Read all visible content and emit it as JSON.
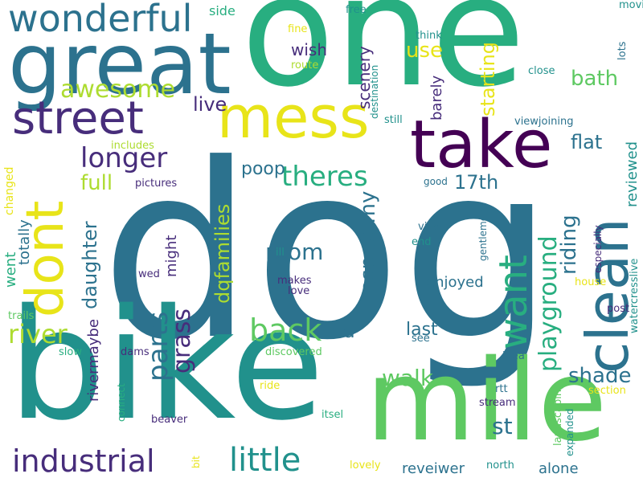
{
  "palette": {
    "dark_purple": "#440154",
    "indigo": "#472d7b",
    "blue_teal": "#2c728e",
    "teal": "#21918c",
    "green": "#28ae80",
    "light_green": "#5ec962",
    "lime": "#addc30",
    "yellow": "#e8e419"
  },
  "words": [
    {
      "text": "one",
      "color": "#28ae80",
      "orientation": "horizontal"
    },
    {
      "text": "dog",
      "color": "#2c728e",
      "orientation": "horizontal"
    },
    {
      "text": "bike",
      "color": "#21918c",
      "orientation": "horizontal"
    },
    {
      "text": "mile",
      "color": "#5ec962",
      "orientation": "horizontal"
    },
    {
      "text": "great",
      "color": "#2c728e",
      "orientation": "horizontal"
    },
    {
      "text": "take",
      "color": "#440154",
      "orientation": "horizontal"
    },
    {
      "text": "mess",
      "color": "#e8e419",
      "orientation": "horizontal"
    },
    {
      "text": "clean",
      "color": "#2c728e",
      "orientation": "vertical"
    },
    {
      "text": "dont",
      "color": "#e8e419",
      "orientation": "vertical"
    },
    {
      "text": "street",
      "color": "#472d7b",
      "orientation": "horizontal"
    },
    {
      "text": "wonderful",
      "color": "#2c728e",
      "orientation": "horizontal"
    },
    {
      "text": "want",
      "color": "#28ae80",
      "orientation": "vertical"
    },
    {
      "text": "industrial",
      "color": "#472d7b",
      "orientation": "horizontal"
    },
    {
      "text": "little",
      "color": "#21918c",
      "orientation": "horizontal"
    },
    {
      "text": "river",
      "color": "#addc30",
      "orientation": "horizontal"
    },
    {
      "text": "back",
      "color": "#5ec962",
      "orientation": "horizontal"
    },
    {
      "text": "longer",
      "color": "#472d7b",
      "orientation": "horizontal"
    },
    {
      "text": "theres",
      "color": "#28ae80",
      "orientation": "horizontal"
    },
    {
      "text": "awesome",
      "color": "#addc30",
      "orientation": "horizontal"
    },
    {
      "text": "playground",
      "color": "#28ae80",
      "orientation": "vertical"
    },
    {
      "text": "parts",
      "color": "#2c728e",
      "orientation": "vertical"
    },
    {
      "text": "grass",
      "color": "#472d7b",
      "orientation": "vertical"
    },
    {
      "text": "room",
      "color": "#2c728e",
      "orientation": "horizontal"
    },
    {
      "text": "walk",
      "color": "#5ec962",
      "orientation": "horizontal"
    },
    {
      "text": "shade",
      "color": "#2c728e",
      "orientation": "horizontal"
    },
    {
      "text": "dqfamilies",
      "color": "#addc30",
      "orientation": "vertical"
    },
    {
      "text": "daughter",
      "color": "#2c728e",
      "orientation": "vertical"
    },
    {
      "text": "respectmy",
      "color": "#2c728e",
      "orientation": "vertical"
    },
    {
      "text": "riding",
      "color": "#2c728e",
      "orientation": "vertical"
    },
    {
      "text": "live",
      "color": "#472d7b",
      "orientation": "horizontal"
    },
    {
      "text": "poop",
      "color": "#2c728e",
      "orientation": "horizontal"
    },
    {
      "text": "full",
      "color": "#addc30",
      "orientation": "horizontal"
    },
    {
      "text": "flat",
      "color": "#2c728e",
      "orientation": "horizontal"
    },
    {
      "text": "17th",
      "color": "#2c728e",
      "orientation": "horizontal"
    },
    {
      "text": "rid",
      "color": "#2c728e",
      "orientation": "horizontal"
    },
    {
      "text": "last",
      "color": "#2c728e",
      "orientation": "horizontal"
    },
    {
      "text": "st",
      "color": "#2c728e",
      "orientation": "horizontal"
    },
    {
      "text": "bath",
      "color": "#5ec962",
      "orientation": "horizontal"
    },
    {
      "text": "use",
      "color": "#e8e419",
      "orientation": "horizontal"
    },
    {
      "text": "starting",
      "color": "#e8e419",
      "orientation": "vertical"
    },
    {
      "text": "wish",
      "color": "#472d7b",
      "orientation": "horizontal"
    },
    {
      "text": "scenery",
      "color": "#472d7b",
      "orientation": "vertical"
    },
    {
      "text": "enjoyed",
      "color": "#2c728e",
      "orientation": "horizontal"
    },
    {
      "text": "reviewed",
      "color": "#21918c",
      "orientation": "vertical"
    },
    {
      "text": "alone",
      "color": "#2c728e",
      "orientation": "horizontal"
    },
    {
      "text": "reveiwer",
      "color": "#2c728e",
      "orientation": "horizontal"
    },
    {
      "text": "went",
      "color": "#28ae80",
      "orientation": "vertical"
    },
    {
      "text": "totally",
      "color": "#2c728e",
      "orientation": "vertical"
    },
    {
      "text": "changed",
      "color": "#e8e419",
      "orientation": "vertical"
    },
    {
      "text": "rivermaybe",
      "color": "#472d7b",
      "orientation": "vertical"
    },
    {
      "text": "might",
      "color": "#472d7b",
      "orientation": "vertical"
    },
    {
      "text": "barely",
      "color": "#472d7b",
      "orientation": "vertical"
    },
    {
      "text": "side",
      "color": "#28ae80",
      "orientation": "horizontal"
    },
    {
      "text": "free",
      "color": "#21918c",
      "orientation": "horizontal"
    },
    {
      "text": "moving",
      "color": "#21918c",
      "orientation": "horizontal"
    },
    {
      "text": "lots",
      "color": "#2c728e",
      "orientation": "vertical"
    },
    {
      "text": "fine",
      "color": "#e8e419",
      "orientation": "horizontal"
    },
    {
      "text": "route",
      "color": "#addc30",
      "orientation": "horizontal"
    },
    {
      "text": "think",
      "color": "#21918c",
      "orientation": "horizontal"
    },
    {
      "text": "close",
      "color": "#21918c",
      "orientation": "horizontal"
    },
    {
      "text": "destination",
      "color": "#21918c",
      "orientation": "vertical"
    },
    {
      "text": "still",
      "color": "#21918c",
      "orientation": "horizontal"
    },
    {
      "text": "viewjoining",
      "color": "#2c728e",
      "orientation": "horizontal"
    },
    {
      "text": "includes",
      "color": "#addc30",
      "orientation": "horizontal"
    },
    {
      "text": "pictures",
      "color": "#472d7b",
      "orientation": "horizontal"
    },
    {
      "text": "good",
      "color": "#2c728e",
      "orientation": "horizontal"
    },
    {
      "text": "gentlemen",
      "color": "#2c728e",
      "orientation": "vertical"
    },
    {
      "text": "especially",
      "color": "#472d7b",
      "orientation": "vertical"
    },
    {
      "text": "watercresslive",
      "color": "#21918c",
      "orientation": "vertical"
    },
    {
      "text": "view",
      "color": "#2c728e",
      "orientation": "horizontal"
    },
    {
      "text": "end",
      "color": "#21918c",
      "orientation": "horizontal"
    },
    {
      "text": "ill",
      "color": "#21918c",
      "orientation": "horizontal"
    },
    {
      "text": "wed",
      "color": "#472d7b",
      "orientation": "horizontal"
    },
    {
      "text": "makes",
      "color": "#472d7b",
      "orientation": "horizontal"
    },
    {
      "text": "love",
      "color": "#472d7b",
      "orientation": "horizontal"
    },
    {
      "text": "house",
      "color": "#e8e419",
      "orientation": "horizontal"
    },
    {
      "text": "post",
      "color": "#472d7b",
      "orientation": "horizontal"
    },
    {
      "text": "trails",
      "color": "#5ec962",
      "orientation": "horizontal"
    },
    {
      "text": "see",
      "color": "#2c728e",
      "orientation": "horizontal"
    },
    {
      "text": "discovered",
      "color": "#5ec962",
      "orientation": "horizontal"
    },
    {
      "text": "slow",
      "color": "#28ae80",
      "orientation": "horizontal"
    },
    {
      "text": "dams",
      "color": "#472d7b",
      "orientation": "horizontal"
    },
    {
      "text": "idea",
      "color": "#2c728e",
      "orientation": "horizontal"
    },
    {
      "text": "ride",
      "color": "#e8e419",
      "orientation": "horizontal"
    },
    {
      "text": "connect",
      "color": "#28ae80",
      "orientation": "vertical"
    },
    {
      "text": "landscaping",
      "color": "#5ec962",
      "orientation": "vertical"
    },
    {
      "text": "expanded",
      "color": "#21918c",
      "orientation": "vertical"
    },
    {
      "text": "rtt",
      "color": "#2c728e",
      "orientation": "horizontal"
    },
    {
      "text": "section",
      "color": "#e8e419",
      "orientation": "horizontal"
    },
    {
      "text": "stream",
      "color": "#472d7b",
      "orientation": "horizontal"
    },
    {
      "text": "beaver",
      "color": "#472d7b",
      "orientation": "horizontal"
    },
    {
      "text": "itsel",
      "color": "#28ae80",
      "orientation": "horizontal"
    },
    {
      "text": "north",
      "color": "#21918c",
      "orientation": "horizontal"
    },
    {
      "text": "lovely",
      "color": "#e8e419",
      "orientation": "horizontal"
    },
    {
      "text": "bit",
      "color": "#e8e419",
      "orientation": "vertical"
    }
  ]
}
